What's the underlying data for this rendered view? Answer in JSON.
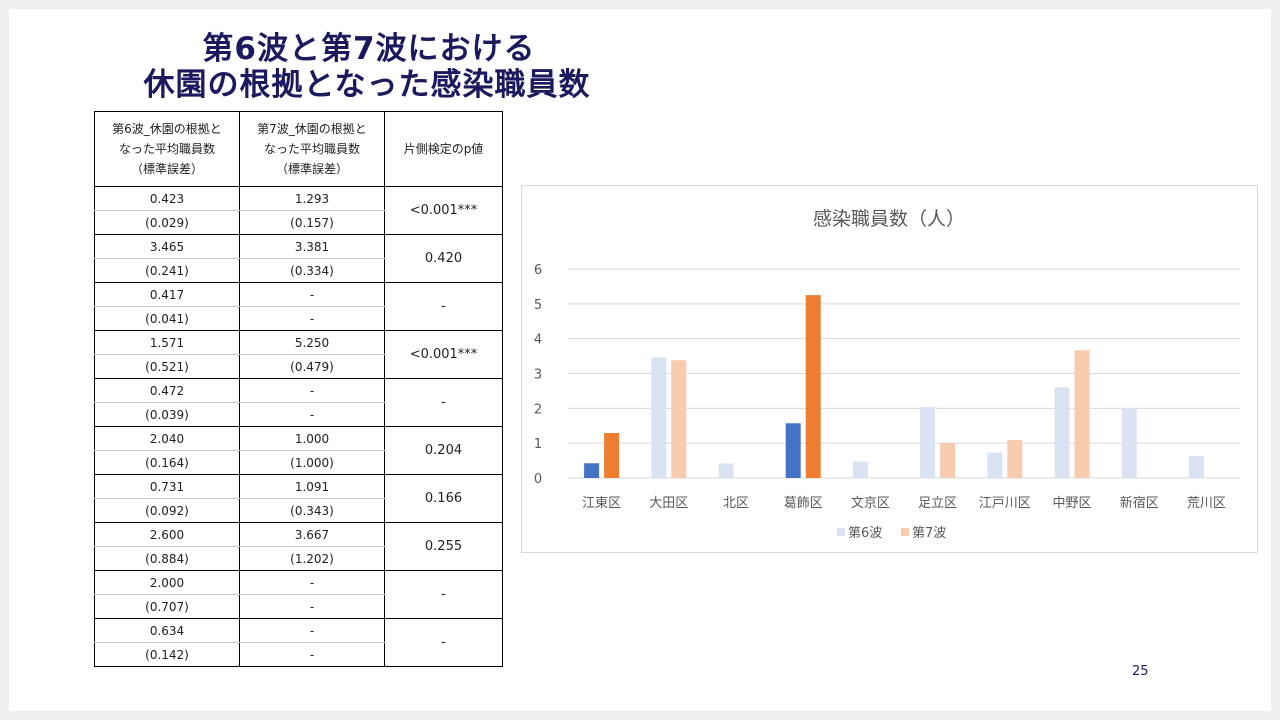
{
  "title": {
    "line1": "第6波と第7波における",
    "line2": "休園の根拠となった感染職員数"
  },
  "table": {
    "headers": [
      [
        "第6波_休園の根拠と",
        "なった平均職員数",
        "（標準誤差）"
      ],
      [
        "第7波_休園の根拠と",
        "なった平均職員数",
        "（標準誤差）"
      ],
      [
        "片側検定のp値"
      ]
    ],
    "rows": [
      {
        "w6": "0.423",
        "w6_se": "(0.029)",
        "w7": "1.293",
        "w7_se": "(0.157)",
        "p": "<0.001***"
      },
      {
        "w6": "3.465",
        "w6_se": "(0.241)",
        "w7": "3.381",
        "w7_se": "(0.334)",
        "p": "0.420"
      },
      {
        "w6": "0.417",
        "w6_se": "(0.041)",
        "w7": "-",
        "w7_se": "-",
        "p": "-"
      },
      {
        "w6": "1.571",
        "w6_se": "(0.521)",
        "w7": "5.250",
        "w7_se": "(0.479)",
        "p": "<0.001***"
      },
      {
        "w6": "0.472",
        "w6_se": "(0.039)",
        "w7": "-",
        "w7_se": "-",
        "p": "-"
      },
      {
        "w6": "2.040",
        "w6_se": "(0.164)",
        "w7": "1.000",
        "w7_se": "(1.000)",
        "p": "0.204"
      },
      {
        "w6": "0.731",
        "w6_se": "(0.092)",
        "w7": "1.091",
        "w7_se": "(0.343)",
        "p": "0.166"
      },
      {
        "w6": "2.600",
        "w6_se": "(0.884)",
        "w7": "3.667",
        "w7_se": "(1.202)",
        "p": "0.255"
      },
      {
        "w6": "2.000",
        "w6_se": "(0.707)",
        "w7": "-",
        "w7_se": "-",
        "p": "-"
      },
      {
        "w6": "0.634",
        "w6_se": "(0.142)",
        "w7": "-",
        "w7_se": "-",
        "p": "-"
      }
    ]
  },
  "chart_data": {
    "type": "bar",
    "title": "感染職員数（人）",
    "xlabel": "",
    "ylabel": "",
    "categories": [
      "江東区",
      "大田区",
      "北区",
      "葛飾区",
      "文京区",
      "足立区",
      "江戸川区",
      "中野区",
      "新宿区",
      "荒川区"
    ],
    "series": [
      {
        "name": "第6波",
        "values": [
          0.423,
          3.465,
          0.417,
          1.571,
          0.472,
          2.04,
          0.731,
          2.6,
          2.0,
          0.634
        ]
      },
      {
        "name": "第7波",
        "values": [
          1.293,
          3.381,
          null,
          5.25,
          null,
          1.0,
          1.091,
          3.667,
          null,
          null
        ]
      }
    ],
    "yticks": [
      0,
      1,
      2,
      3,
      4,
      5,
      6
    ],
    "ylim": [
      0,
      6
    ],
    "grid": true,
    "legend": "bottom",
    "colors": {
      "wave6_light": "#dae3f3",
      "wave6_dark": "#4472c4",
      "wave7_light": "#f8cbad",
      "wave7_dark": "#ed7d31"
    },
    "highlighted_categories": [
      "江東区",
      "葛飾区"
    ]
  },
  "page_number": "25"
}
